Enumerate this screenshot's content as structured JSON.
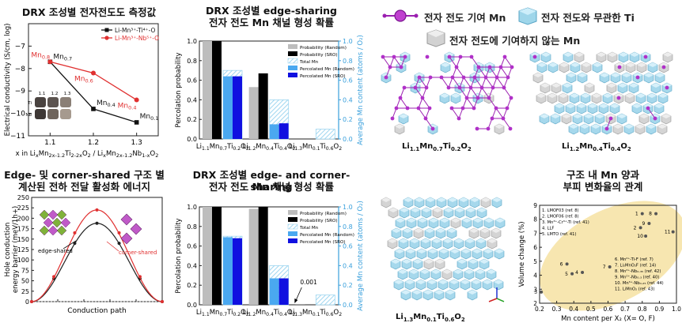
{
  "panel_a": {
    "title": "DRX 조성별 전자전도도 측정값",
    "ylabel": "Electrical conductivity (S/cm, log)",
    "xlabel": "x in LixMn2x-1.2Ti2-2xO2 / LixMn2x-1.2Nb1-xO2",
    "legend": [
      "Li-Mn³⁺-Ti⁴⁺-O",
      "Li-Mn³⁺-Nb⁵⁺-O"
    ],
    "inset_labels": [
      "1.1",
      "1.2",
      "1.3",
      "Ti",
      "Nb"
    ]
  },
  "panel_b": {
    "title_line1": "DRX 조성별 edge-sharing",
    "title_line2": "전자 전도 Mn 채널 형성 확률",
    "ylabel": "Percolation probability",
    "y2label": "Average Mn content (atoms / O₂)",
    "legend": [
      "Probability (Random)",
      "Probability (SRO)",
      "Total Mn",
      "Percolated Mn (Random)",
      "Percolated Mn (SRO)"
    ],
    "categories": [
      "Li1.1Mn0.7Ti0.2O2",
      "Li1.2Mn0.4Ti0.4O2",
      "Li1.3Mn0.1Ti0.6O2"
    ]
  },
  "panel_c": {
    "legend_mn": "전자 전도 기여 Mn",
    "legend_ti": "전자 전도와 무관한 Ti",
    "legend_mn_non": "전자 전도에 기여하지 않는 Mn",
    "struct_labels": [
      "Li1.1Mn0.7Ti0.2O2",
      "Li1.2Mn0.4Ti0.4O2",
      "Li1.3Mn0.1Ti0.6O2"
    ]
  },
  "panel_d": {
    "title_line1": "Edge- 및 corner-shared 구조 별",
    "title_line2": "계산된 전하 전달 활성화 에너지",
    "ylabel": "Hole conduction energy barrier (meV/1h+)",
    "xlabel": "Conduction path",
    "annot_edge": "edge-shared",
    "annot_corner": "corner-shared"
  },
  "panel_e": {
    "title_line1": "DRX 조성별 edge- and corner-sharing",
    "title_line2": "전자 전도 Mn 채널 형성 확률",
    "ylabel": "Percolation probability",
    "y2label": "Average Mn content (atoms / O₂)",
    "annotation": "0.001"
  },
  "panel_f": {
    "title_line1": "구조 내 Mn 양과",
    "title_line2": "부피 변화율의 관계",
    "ylabel": "Volume change (%)",
    "xlabel": "Mn content per X₂ (X= O, F)",
    "refs": [
      "1. LMOF03 (ref. 8)",
      "2. LMOF06 (ref. 8)",
      "3. Mn³⁺-Cr³⁺-Ti (ref. 41)",
      "4. LLF",
      "5. LMTO (ref. 41)",
      "6. Mn²⁺-Ti-F (ref. 7)",
      "7. Li₂MnO₂F (ref. 14)",
      "8. Mn²⁺-Nb₀.₃₅ (ref. 42)",
      "9. Mn²⁺-Nb₀.₃ (ref. 40)",
      "10. Mn³⁺-Nb₀.₂₅ (ref. 44)",
      "11. LiMnO₂ (ref. 43)"
    ]
  },
  "chart_data": [
    {
      "type": "line",
      "title": "DRX 조성별 전자전도도 측정값",
      "xlabel": "x in LixMn2x-1.2Ti2-2xO2 / LixMn2x-1.2Nb1-xO2",
      "ylabel": "Electrical conductivity (S/cm, log)",
      "x": [
        1.1,
        1.2,
        1.3
      ],
      "xlim": [
        1.05,
        1.35
      ],
      "ylim": [
        -11,
        -6
      ],
      "yticks": [
        -7,
        -8,
        -9,
        -10,
        -11
      ],
      "series": [
        {
          "name": "Li-Mn³⁺-Ti⁴⁺-O",
          "color": "#111111",
          "values": [
            -7.7,
            -9.8,
            -10.4
          ],
          "labels": [
            "Mn0.7",
            "Mn0.4",
            "Mn0.1"
          ]
        },
        {
          "name": "Li-Mn³⁺-Nb⁵⁺-O",
          "color": "#e03030",
          "values": [
            -7.7,
            -8.2,
            -9.4
          ],
          "labels": [
            "Mn0.8",
            "Mn0.6",
            "Mn0.4"
          ]
        }
      ]
    },
    {
      "type": "bar",
      "title": "DRX 조성별 edge-sharing 전자 전도 Mn 채널 형성 확률",
      "categories": [
        "Li1.1Mn0.7Ti0.2O2",
        "Li1.2Mn0.4Ti0.4O2",
        "Li1.3Mn0.1Ti0.6O2"
      ],
      "ylim": [
        0,
        1.0
      ],
      "yticks": [
        0,
        0.2,
        0.4,
        0.6,
        0.8,
        1.0
      ],
      "series": [
        {
          "name": "Probability (Random)",
          "color": "#bdbdbd",
          "values": [
            1.0,
            0.53,
            0
          ]
        },
        {
          "name": "Probability (SRO)",
          "color": "#000000",
          "values": [
            1.0,
            0.67,
            0
          ]
        },
        {
          "name": "Total Mn",
          "color": "#9fd6f0",
          "values": [
            0.7,
            0.4,
            0.1
          ]
        },
        {
          "name": "Percolated Mn (Random)",
          "color": "#4aa8f0",
          "values": [
            0.64,
            0.15,
            0
          ]
        },
        {
          "name": "Percolated Mn (SRO)",
          "color": "#1010e0",
          "values": [
            0.64,
            0.16,
            0
          ]
        }
      ]
    },
    {
      "type": "line",
      "title": "Edge- 및 corner-shared 구조 별 계산된 전하 전달 활성화 에너지",
      "xlabel": "Conduction path",
      "ylabel": "Hole conduction energy barrier (meV/1h+)",
      "ylim": [
        0,
        250
      ],
      "yticks": [
        0,
        25,
        50,
        75,
        100,
        125,
        150,
        175,
        200,
        225,
        250
      ],
      "xlim": [
        0,
        1.0
      ],
      "xticks": [
        0,
        0.2,
        0.4,
        0.6,
        0.8,
        1.0
      ],
      "series": [
        {
          "name": "edge-shared",
          "color": "#222222",
          "x": [
            0,
            0.17,
            0.33,
            0.5,
            0.67,
            0.83,
            1.0
          ],
          "values": [
            0,
            55,
            140,
            188,
            140,
            55,
            0
          ]
        },
        {
          "name": "corner-shared",
          "color": "#e03030",
          "x": [
            0,
            0.17,
            0.33,
            0.5,
            0.67,
            0.83,
            1.0
          ],
          "values": [
            0,
            60,
            165,
            220,
            165,
            60,
            0
          ]
        }
      ]
    },
    {
      "type": "bar",
      "title": "DRX 조성별 edge- and corner-sharing 전자 전도 Mn 채널 형성 확률",
      "categories": [
        "Li1.1Mn0.7Ti0.2O2",
        "Li1.2Mn0.4Ti0.4O2",
        "Li1.3Mn0.1Ti0.6O2"
      ],
      "ylim": [
        0,
        1.0
      ],
      "yticks": [
        0,
        0.2,
        0.4,
        0.6,
        0.8,
        1.0
      ],
      "series": [
        {
          "name": "Probability (Random)",
          "color": "#bdbdbd",
          "values": [
            1.0,
            0.98,
            0.001
          ]
        },
        {
          "name": "Probability (SRO)",
          "color": "#000000",
          "values": [
            1.0,
            1.0,
            0
          ]
        },
        {
          "name": "Total Mn",
          "color": "#9fd6f0",
          "values": [
            0.7,
            0.4,
            0.1
          ]
        },
        {
          "name": "Percolated Mn (Random)",
          "color": "#4aa8f0",
          "values": [
            0.69,
            0.27,
            0
          ]
        },
        {
          "name": "Percolated Mn (SRO)",
          "color": "#1010e0",
          "values": [
            0.68,
            0.27,
            0
          ]
        }
      ]
    },
    {
      "type": "scatter",
      "title": "구조 내 Mn 양과 부피 변화율의 관계",
      "xlabel": "Mn content per X₂ (X= O, F)",
      "ylabel": "Volume change (%)",
      "xlim": [
        0.2,
        1.0
      ],
      "ylim": [
        2,
        9
      ],
      "xticks": [
        0.2,
        0.3,
        0.4,
        0.5,
        0.6,
        0.7,
        0.8,
        0.9,
        1.0
      ],
      "yticks": [
        2,
        3,
        4,
        5,
        6,
        7,
        8,
        9
      ],
      "points": [
        {
          "label": "1",
          "x": 0.8,
          "y": 8.4
        },
        {
          "label": "2",
          "x": 0.79,
          "y": 7.4
        },
        {
          "label": "3",
          "x": 0.21,
          "y": 2.8
        },
        {
          "label": "4",
          "x": 0.45,
          "y": 4.2
        },
        {
          "label": "5",
          "x": 0.39,
          "y": 4.1
        },
        {
          "label": "6",
          "x": 0.36,
          "y": 4.8
        },
        {
          "label": "7",
          "x": 0.61,
          "y": 4.6
        },
        {
          "label": "8",
          "x": 0.88,
          "y": 8.4
        },
        {
          "label": "9",
          "x": 0.84,
          "y": 7.7
        },
        {
          "label": "10",
          "x": 0.82,
          "y": 6.8
        },
        {
          "label": "11",
          "x": 0.98,
          "y": 7.1
        }
      ]
    }
  ]
}
